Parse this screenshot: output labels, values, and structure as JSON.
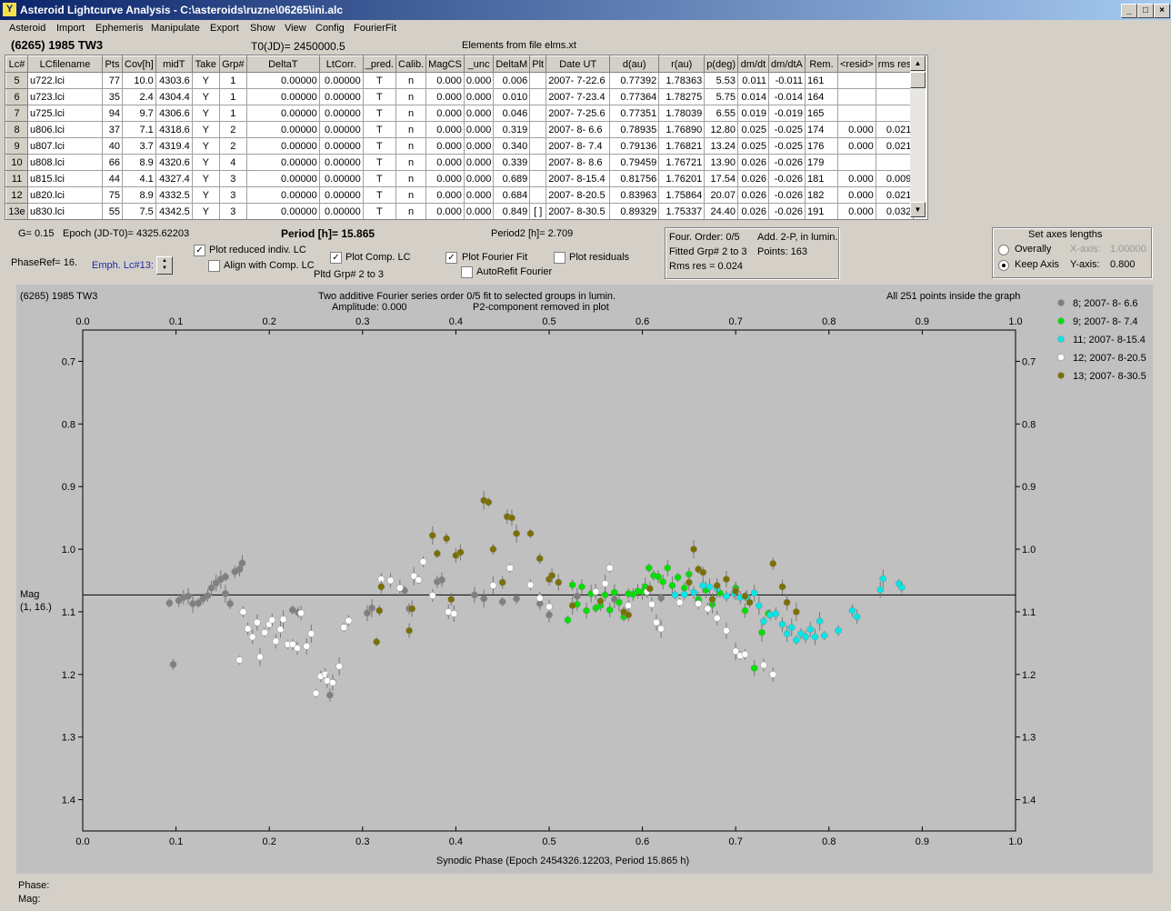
{
  "window": {
    "icon": "lightcurve-app-icon",
    "title": "Asteroid Lightcurve Analysis - C:\\asteroids\\ruzne\\06265\\ini.alc",
    "controls": [
      "_",
      "□",
      "×"
    ]
  },
  "menu": [
    "Asteroid",
    "Import",
    "Ephemeris",
    "Manipulate",
    "Export",
    "Show",
    "View",
    "Config",
    "FourierFit"
  ],
  "header": {
    "asteroid": "(6265) 1985 TW3",
    "t0": "T0(JD)= 2450000.5",
    "elements": "Elements from file elms.xt"
  },
  "table": {
    "columns": [
      "Lc#",
      "LCfilename",
      "Pts",
      "Cov[h]",
      "midT",
      "Take",
      "Grp#",
      "DeltaT",
      "LtCorr.",
      "_pred.",
      "Calib.",
      "MagCS",
      "_unc",
      "DeltaM",
      "Plt",
      "Date UT",
      "d(au)",
      "r(au)",
      "p(deg)",
      "dm/dt",
      "dm/dtA",
      "Rem.",
      "<resid>",
      "rms res"
    ],
    "rows": [
      [
        "5",
        "u722.lci",
        "77",
        "10.0",
        "4303.6",
        "Y",
        "1",
        "0.00000",
        "0.00000",
        "T",
        "n",
        "0.000",
        "0.000",
        "0.006",
        "",
        "2007- 7-22.6",
        "0.77392",
        "1.78363",
        "5.53",
        "0.011",
        "-0.011",
        "161",
        "",
        ""
      ],
      [
        "6",
        "u723.lci",
        "35",
        "2.4",
        "4304.4",
        "Y",
        "1",
        "0.00000",
        "0.00000",
        "T",
        "n",
        "0.000",
        "0.000",
        "0.010",
        "",
        "2007- 7-23.4",
        "0.77364",
        "1.78275",
        "5.75",
        "0.014",
        "-0.014",
        "164",
        "",
        ""
      ],
      [
        "7",
        "u725.lci",
        "94",
        "9.7",
        "4306.6",
        "Y",
        "1",
        "0.00000",
        "0.00000",
        "T",
        "n",
        "0.000",
        "0.000",
        "0.046",
        "",
        "2007- 7-25.6",
        "0.77351",
        "1.78039",
        "6.55",
        "0.019",
        "-0.019",
        "165",
        "",
        ""
      ],
      [
        "8",
        "u806.lci",
        "37",
        "7.1",
        "4318.6",
        "Y",
        "2",
        "0.00000",
        "0.00000",
        "T",
        "n",
        "0.000",
        "0.000",
        "0.319",
        "",
        "2007- 8- 6.6",
        "0.78935",
        "1.76890",
        "12.80",
        "0.025",
        "-0.025",
        "174",
        "0.000",
        "0.021"
      ],
      [
        "9",
        "u807.lci",
        "40",
        "3.7",
        "4319.4",
        "Y",
        "2",
        "0.00000",
        "0.00000",
        "T",
        "n",
        "0.000",
        "0.000",
        "0.340",
        "",
        "2007- 8- 7.4",
        "0.79136",
        "1.76821",
        "13.24",
        "0.025",
        "-0.025",
        "176",
        "0.000",
        "0.021"
      ],
      [
        "10",
        "u808.lci",
        "66",
        "8.9",
        "4320.6",
        "Y",
        "4",
        "0.00000",
        "0.00000",
        "T",
        "n",
        "0.000",
        "0.000",
        "0.339",
        "",
        "2007- 8- 8.6",
        "0.79459",
        "1.76721",
        "13.90",
        "0.026",
        "-0.026",
        "179",
        "",
        ""
      ],
      [
        "11",
        "u815.lci",
        "44",
        "4.1",
        "4327.4",
        "Y",
        "3",
        "0.00000",
        "0.00000",
        "T",
        "n",
        "0.000",
        "0.000",
        "0.689",
        "",
        "2007- 8-15.4",
        "0.81756",
        "1.76201",
        "17.54",
        "0.026",
        "-0.026",
        "181",
        "0.000",
        "0.009"
      ],
      [
        "12",
        "u820.lci",
        "75",
        "8.9",
        "4332.5",
        "Y",
        "3",
        "0.00000",
        "0.00000",
        "T",
        "n",
        "0.000",
        "0.000",
        "0.684",
        "",
        "2007- 8-20.5",
        "0.83963",
        "1.75864",
        "20.07",
        "0.026",
        "-0.026",
        "182",
        "0.000",
        "0.021"
      ],
      [
        "13e",
        "u830.lci",
        "55",
        "7.5",
        "4342.5",
        "Y",
        "3",
        "0.00000",
        "0.00000",
        "T",
        "n",
        "0.000",
        "0.000",
        "0.849",
        "[ ]",
        "2007- 8-30.5",
        "0.89329",
        "1.75337",
        "24.40",
        "0.026",
        "-0.026",
        "191",
        "0.000",
        "0.032"
      ]
    ]
  },
  "controls": {
    "g": "G= 0.15",
    "epoch": "Epoch (JD-T0)= 4325.62203",
    "period": "Period [h]= 15.865",
    "period2": "Period2 [h]= 2.709",
    "phaseref": "PhaseRef= 16.",
    "emph": "Emph. Lc#13:",
    "plot_reduced": "Plot reduced indiv. LC",
    "align": "Align with Comp. LC",
    "plot_comp": "Plot Comp. LC",
    "pltd_grp": "Pltd Grp#  2  to   3",
    "plot_fourier": "Plot Fourier Fit",
    "autorefit": "AutoRefit Fourier",
    "plot_residuals": "Plot residuals"
  },
  "fourier_info": {
    "order": "Four. Order:  0/5",
    "add": "Add. 2-P, in lumin.",
    "fitted": "Fitted Grp# 2 to 3",
    "points": "Points: 163",
    "rms": "Rms res     = 0.024"
  },
  "axes_box": {
    "title": "Set axes lengths",
    "overally": "Overally",
    "keep": "Keep Axis",
    "xaxis_label": "X-axis:",
    "xaxis_value": "1.00000",
    "yaxis_label": "Y-axis:",
    "yaxis_value": "0.800"
  },
  "plot_header": {
    "left": "(6265) 1985 TW3",
    "center1": "Two additive Fourier series order 0/5 fit to selected groups in lumin.",
    "amplitude": "Amplitude: 0.000",
    "p2": "P2-component removed in plot",
    "right": "All 251 points inside the graph",
    "ylabel1": "Mag",
    "ylabel2": "(1, 16.)"
  },
  "status": {
    "phase": "Phase:",
    "mag": "Mag:"
  },
  "chart_data": {
    "type": "scatter",
    "xlabel": "Synodic Phase (Epoch 2454326.12203, Period 15.865 h)",
    "xlim": [
      0.0,
      1.0
    ],
    "ylim": [
      1.45,
      0.65
    ],
    "xticks": [
      "0.0",
      "0.1",
      "0.2",
      "0.3",
      "0.4",
      "0.5",
      "0.6",
      "0.7",
      "0.8",
      "0.9",
      "1.0"
    ],
    "yticks": [
      "0.7",
      "0.8",
      "0.9",
      "1.0",
      "1.1",
      "1.2",
      "1.3",
      "1.4"
    ],
    "ytick_values": [
      0.7,
      0.8,
      0.9,
      1.0,
      1.1,
      1.2,
      1.3,
      1.4
    ],
    "reference_line": 1.073,
    "series": [
      {
        "name": "8; 2007- 8- 6.6",
        "color": "#808080",
        "points": [
          [
            0.093,
            1.086
          ],
          [
            0.097,
            1.184
          ],
          [
            0.103,
            1.082
          ],
          [
            0.108,
            1.077
          ],
          [
            0.113,
            1.075
          ],
          [
            0.118,
            1.087
          ],
          [
            0.124,
            1.086
          ],
          [
            0.129,
            1.079
          ],
          [
            0.134,
            1.074
          ],
          [
            0.138,
            1.062
          ],
          [
            0.143,
            1.054
          ],
          [
            0.148,
            1.048
          ],
          [
            0.153,
            1.044
          ],
          [
            0.158,
            1.087
          ],
          [
            0.163,
            1.036
          ],
          [
            0.168,
            1.032
          ],
          [
            0.171,
            1.022
          ],
          [
            0.153,
            1.071
          ],
          [
            0.225,
            1.097
          ],
          [
            0.231,
            1.101
          ],
          [
            0.265,
            1.233
          ],
          [
            0.268,
            1.212
          ],
          [
            0.305,
            1.102
          ],
          [
            0.31,
            1.094
          ],
          [
            0.345,
            1.066
          ],
          [
            0.35,
            1.095
          ],
          [
            0.38,
            1.052
          ],
          [
            0.385,
            1.049
          ],
          [
            0.42,
            1.073
          ],
          [
            0.43,
            1.079
          ],
          [
            0.45,
            1.084
          ],
          [
            0.465,
            1.079
          ],
          [
            0.49,
            1.087
          ],
          [
            0.5,
            1.105
          ],
          [
            0.53,
            1.075
          ],
          [
            0.57,
            1.08
          ],
          [
            0.62,
            1.078
          ],
          [
            0.66,
            1.082
          ]
        ]
      },
      {
        "name": "9; 2007- 8- 7.4",
        "color": "#00e000",
        "points": [
          [
            0.52,
            1.113
          ],
          [
            0.525,
            1.057
          ],
          [
            0.53,
            1.088
          ],
          [
            0.535,
            1.06
          ],
          [
            0.54,
            1.098
          ],
          [
            0.545,
            1.071
          ],
          [
            0.55,
            1.094
          ],
          [
            0.555,
            1.09
          ],
          [
            0.56,
            1.073
          ],
          [
            0.565,
            1.097
          ],
          [
            0.57,
            1.069
          ],
          [
            0.575,
            1.085
          ],
          [
            0.58,
            1.108
          ],
          [
            0.585,
            1.071
          ],
          [
            0.59,
            1.072
          ],
          [
            0.595,
            1.067
          ],
          [
            0.6,
            1.068
          ],
          [
            0.603,
            1.06
          ],
          [
            0.607,
            1.03
          ],
          [
            0.612,
            1.042
          ],
          [
            0.617,
            1.044
          ],
          [
            0.622,
            1.052
          ],
          [
            0.627,
            1.03
          ],
          [
            0.632,
            1.058
          ],
          [
            0.638,
            1.045
          ],
          [
            0.645,
            1.062
          ],
          [
            0.65,
            1.04
          ],
          [
            0.66,
            1.08
          ],
          [
            0.668,
            1.065
          ],
          [
            0.675,
            1.088
          ],
          [
            0.683,
            1.07
          ],
          [
            0.69,
            1.075
          ],
          [
            0.7,
            1.062
          ],
          [
            0.71,
            1.098
          ],
          [
            0.72,
            1.19
          ],
          [
            0.728,
            1.133
          ],
          [
            0.735,
            1.103
          ]
        ]
      },
      {
        "name": "11; 2007- 8-15.4",
        "color": "#00e8e8",
        "points": [
          [
            0.635,
            1.073
          ],
          [
            0.645,
            1.072
          ],
          [
            0.655,
            1.069
          ],
          [
            0.665,
            1.058
          ],
          [
            0.672,
            1.06
          ],
          [
            0.68,
            1.063
          ],
          [
            0.69,
            1.075
          ],
          [
            0.698,
            1.07
          ],
          [
            0.705,
            1.077
          ],
          [
            0.712,
            1.077
          ],
          [
            0.72,
            1.07
          ],
          [
            0.725,
            1.09
          ],
          [
            0.73,
            1.115
          ],
          [
            0.737,
            1.105
          ],
          [
            0.743,
            1.103
          ],
          [
            0.75,
            1.12
          ],
          [
            0.755,
            1.135
          ],
          [
            0.76,
            1.125
          ],
          [
            0.765,
            1.145
          ],
          [
            0.77,
            1.135
          ],
          [
            0.775,
            1.14
          ],
          [
            0.78,
            1.128
          ],
          [
            0.785,
            1.14
          ],
          [
            0.79,
            1.115
          ],
          [
            0.795,
            1.138
          ],
          [
            0.81,
            1.13
          ],
          [
            0.825,
            1.098
          ],
          [
            0.83,
            1.108
          ],
          [
            0.855,
            1.065
          ],
          [
            0.858,
            1.047
          ],
          [
            0.875,
            1.055
          ],
          [
            0.878,
            1.061
          ]
        ]
      },
      {
        "name": "12; 2007- 8-20.5",
        "color": "#ffffff",
        "points": [
          [
            0.168,
            1.177
          ],
          [
            0.172,
            1.1
          ],
          [
            0.177,
            1.127
          ],
          [
            0.182,
            1.14
          ],
          [
            0.187,
            1.117
          ],
          [
            0.19,
            1.172
          ],
          [
            0.195,
            1.133
          ],
          [
            0.2,
            1.12
          ],
          [
            0.203,
            1.113
          ],
          [
            0.207,
            1.147
          ],
          [
            0.212,
            1.128
          ],
          [
            0.215,
            1.112
          ],
          [
            0.22,
            1.152
          ],
          [
            0.225,
            1.152
          ],
          [
            0.23,
            1.158
          ],
          [
            0.234,
            1.102
          ],
          [
            0.24,
            1.155
          ],
          [
            0.245,
            1.135
          ],
          [
            0.25,
            1.23
          ],
          [
            0.255,
            1.203
          ],
          [
            0.26,
            1.2
          ],
          [
            0.262,
            1.21
          ],
          [
            0.268,
            1.213
          ],
          [
            0.275,
            1.187
          ],
          [
            0.28,
            1.125
          ],
          [
            0.285,
            1.114
          ],
          [
            0.32,
            1.048
          ],
          [
            0.33,
            1.05
          ],
          [
            0.34,
            1.062
          ],
          [
            0.355,
            1.043
          ],
          [
            0.36,
            1.049
          ],
          [
            0.365,
            1.02
          ],
          [
            0.375,
            1.074
          ],
          [
            0.392,
            1.1
          ],
          [
            0.398,
            1.103
          ],
          [
            0.44,
            1.058
          ],
          [
            0.458,
            1.03
          ],
          [
            0.48,
            1.057
          ],
          [
            0.49,
            1.078
          ],
          [
            0.5,
            1.092
          ],
          [
            0.55,
            1.068
          ],
          [
            0.56,
            1.055
          ],
          [
            0.565,
            1.03
          ],
          [
            0.585,
            1.09
          ],
          [
            0.605,
            1.068
          ],
          [
            0.61,
            1.088
          ],
          [
            0.615,
            1.117
          ],
          [
            0.62,
            1.127
          ],
          [
            0.64,
            1.085
          ],
          [
            0.66,
            1.087
          ],
          [
            0.67,
            1.095
          ],
          [
            0.68,
            1.11
          ],
          [
            0.69,
            1.13
          ],
          [
            0.7,
            1.163
          ],
          [
            0.705,
            1.17
          ],
          [
            0.71,
            1.168
          ],
          [
            0.73,
            1.185
          ],
          [
            0.74,
            1.2
          ]
        ]
      },
      {
        "name": "13; 2007- 8-30.5",
        "color": "#7a7000",
        "points": [
          [
            0.315,
            1.148
          ],
          [
            0.318,
            1.098
          ],
          [
            0.32,
            1.06
          ],
          [
            0.35,
            1.13
          ],
          [
            0.353,
            1.095
          ],
          [
            0.375,
            0.978
          ],
          [
            0.38,
            1.007
          ],
          [
            0.39,
            0.983
          ],
          [
            0.395,
            1.08
          ],
          [
            0.4,
            1.01
          ],
          [
            0.405,
            1.005
          ],
          [
            0.43,
            0.922
          ],
          [
            0.435,
            0.925
          ],
          [
            0.44,
            1.0
          ],
          [
            0.45,
            1.053
          ],
          [
            0.455,
            0.948
          ],
          [
            0.46,
            0.95
          ],
          [
            0.465,
            0.975
          ],
          [
            0.48,
            0.975
          ],
          [
            0.49,
            1.015
          ],
          [
            0.5,
            1.048
          ],
          [
            0.503,
            1.042
          ],
          [
            0.51,
            1.053
          ],
          [
            0.525,
            1.09
          ],
          [
            0.555,
            1.083
          ],
          [
            0.58,
            1.1
          ],
          [
            0.585,
            1.105
          ],
          [
            0.608,
            1.063
          ],
          [
            0.65,
            1.053
          ],
          [
            0.655,
            1.0
          ],
          [
            0.66,
            1.032
          ],
          [
            0.665,
            1.037
          ],
          [
            0.675,
            1.08
          ],
          [
            0.68,
            1.058
          ],
          [
            0.69,
            1.048
          ],
          [
            0.7,
            1.067
          ],
          [
            0.71,
            1.075
          ],
          [
            0.715,
            1.085
          ],
          [
            0.74,
            1.023
          ],
          [
            0.75,
            1.06
          ],
          [
            0.755,
            1.085
          ],
          [
            0.765,
            1.1
          ]
        ]
      }
    ]
  }
}
